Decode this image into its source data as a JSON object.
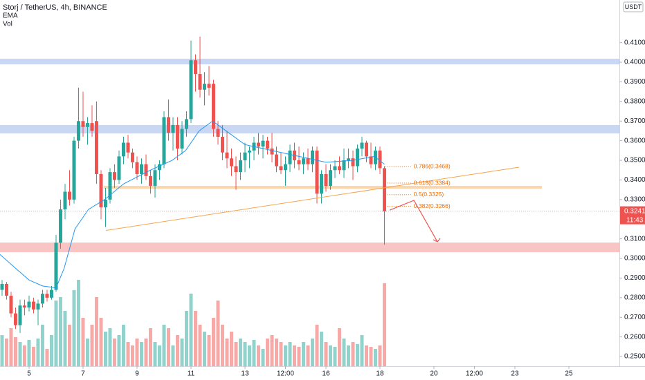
{
  "chart_data": {
    "type": "candlestick",
    "title": "Storj / TetherUS, 4h, BINANCE",
    "indicators": [
      "EMA",
      "Vol"
    ],
    "currency": "USDT",
    "xlim": [
      3.923,
      26.872
    ],
    "xticks": [
      {
        "value": 5,
        "label": "5"
      },
      {
        "value": 7,
        "label": "7"
      },
      {
        "value": 9,
        "label": "9"
      },
      {
        "value": 11,
        "label": "11"
      },
      {
        "value": 13,
        "label": "13"
      },
      {
        "value": 14.5,
        "label": "12:00"
      },
      {
        "value": 16,
        "label": "16"
      },
      {
        "value": 18,
        "label": "18"
      },
      {
        "value": 20,
        "label": "20"
      },
      {
        "value": 21.5,
        "label": "12:00"
      },
      {
        "value": 23,
        "label": "23"
      },
      {
        "value": 25,
        "label": "25"
      }
    ],
    "ylim": [
      0.2451,
      0.4317
    ],
    "yticks": [
      {
        "value": 0.25,
        "label": "0.2500"
      },
      {
        "value": 0.26,
        "label": "0.2600"
      },
      {
        "value": 0.27,
        "label": "0.2700"
      },
      {
        "value": 0.28,
        "label": "0.2800"
      },
      {
        "value": 0.29,
        "label": "0.2900"
      },
      {
        "value": 0.3,
        "label": "0.3000"
      },
      {
        "value": 0.31,
        "label": "0.3100"
      },
      {
        "value": 0.33,
        "label": "0.3300"
      },
      {
        "value": 0.34,
        "label": "0.3400"
      },
      {
        "value": 0.35,
        "label": "0.3500"
      },
      {
        "value": 0.36,
        "label": "0.3600"
      },
      {
        "value": 0.37,
        "label": "0.3700"
      },
      {
        "value": 0.38,
        "label": "0.3800"
      },
      {
        "value": 0.39,
        "label": "0.3900"
      },
      {
        "value": 0.4,
        "label": "0.4000"
      },
      {
        "value": 0.41,
        "label": "0.4100"
      }
    ],
    "vlim": [
      0,
      240
    ],
    "up_color": "#26a69a",
    "down_color": "#ef5350",
    "grid": false,
    "x": [
      4,
      4.167,
      4.333,
      4.5,
      4.667,
      4.833,
      5,
      5.167,
      5.333,
      5.5,
      5.667,
      5.833,
      6,
      6.167,
      6.333,
      6.5,
      6.667,
      6.833,
      7,
      7.167,
      7.333,
      7.5,
      7.667,
      7.833,
      8,
      8.167,
      8.333,
      8.5,
      8.667,
      8.833,
      9,
      9.167,
      9.333,
      9.5,
      9.667,
      9.833,
      10,
      10.167,
      10.333,
      10.5,
      10.667,
      10.833,
      11,
      11.167,
      11.333,
      11.5,
      11.667,
      11.833,
      12,
      12.167,
      12.333,
      12.5,
      12.667,
      12.833,
      13,
      13.167,
      13.333,
      13.5,
      13.667,
      13.833,
      14,
      14.167,
      14.333,
      14.5,
      14.667,
      14.833,
      15,
      15.167,
      15.333,
      15.5,
      15.667,
      15.833,
      16,
      16.167,
      16.333,
      16.5,
      16.667,
      16.833,
      17,
      17.167,
      17.333,
      17.5,
      17.667,
      17.833,
      18,
      18.167
    ],
    "candles": [
      [
        0.284,
        0.289,
        0.281,
        0.287,
        45
      ],
      [
        0.287,
        0.288,
        0.279,
        0.281,
        40
      ],
      [
        0.281,
        0.283,
        0.27,
        0.272,
        55
      ],
      [
        0.272,
        0.275,
        0.264,
        0.266,
        42
      ],
      [
        0.266,
        0.279,
        0.262,
        0.276,
        35
      ],
      [
        0.276,
        0.279,
        0.271,
        0.275,
        30
      ],
      [
        0.275,
        0.281,
        0.273,
        0.278,
        38
      ],
      [
        0.278,
        0.28,
        0.272,
        0.274,
        28
      ],
      [
        0.274,
        0.279,
        0.266,
        0.277,
        40
      ],
      [
        0.277,
        0.284,
        0.275,
        0.282,
        60
      ],
      [
        0.282,
        0.284,
        0.278,
        0.28,
        25
      ],
      [
        0.28,
        0.286,
        0.279,
        0.284,
        45
      ],
      [
        0.284,
        0.312,
        0.283,
        0.308,
        95
      ],
      [
        0.308,
        0.33,
        0.305,
        0.325,
        100
      ],
      [
        0.325,
        0.338,
        0.32,
        0.334,
        80
      ],
      [
        0.334,
        0.345,
        0.327,
        0.33,
        60
      ],
      [
        0.33,
        0.362,
        0.328,
        0.36,
        110
      ],
      [
        0.36,
        0.387,
        0.356,
        0.37,
        125
      ],
      [
        0.37,
        0.385,
        0.362,
        0.367,
        70
      ],
      [
        0.367,
        0.372,
        0.358,
        0.369,
        40
      ],
      [
        0.369,
        0.378,
        0.362,
        0.365,
        60
      ],
      [
        0.37,
        0.38,
        0.338,
        0.343,
        100
      ],
      [
        0.343,
        0.345,
        0.32,
        0.326,
        70
      ],
      [
        0.326,
        0.336,
        0.316,
        0.33,
        50
      ],
      [
        0.33,
        0.346,
        0.328,
        0.344,
        55
      ],
      [
        0.344,
        0.348,
        0.336,
        0.34,
        40
      ],
      [
        0.34,
        0.355,
        0.338,
        0.352,
        45
      ],
      [
        0.352,
        0.362,
        0.348,
        0.359,
        60
      ],
      [
        0.359,
        0.363,
        0.351,
        0.354,
        35
      ],
      [
        0.354,
        0.356,
        0.346,
        0.349,
        30
      ],
      [
        0.349,
        0.352,
        0.34,
        0.343,
        40
      ],
      [
        0.343,
        0.351,
        0.338,
        0.348,
        35
      ],
      [
        0.348,
        0.353,
        0.34,
        0.342,
        40
      ],
      [
        0.342,
        0.345,
        0.333,
        0.337,
        55
      ],
      [
        0.337,
        0.348,
        0.331,
        0.345,
        35
      ],
      [
        0.345,
        0.35,
        0.34,
        0.348,
        30
      ],
      [
        0.348,
        0.375,
        0.346,
        0.372,
        60
      ],
      [
        0.372,
        0.381,
        0.36,
        0.364,
        55
      ],
      [
        0.364,
        0.372,
        0.355,
        0.368,
        30
      ],
      [
        0.368,
        0.372,
        0.35,
        0.356,
        45
      ],
      [
        0.356,
        0.37,
        0.353,
        0.366,
        40
      ],
      [
        0.366,
        0.375,
        0.362,
        0.371,
        80
      ],
      [
        0.371,
        0.411,
        0.369,
        0.401,
        105
      ],
      [
        0.401,
        0.404,
        0.385,
        0.394,
        80
      ],
      [
        0.394,
        0.413,
        0.382,
        0.386,
        60
      ],
      [
        0.386,
        0.395,
        0.378,
        0.389,
        50
      ],
      [
        0.389,
        0.398,
        0.383,
        0.387,
        45
      ],
      [
        0.389,
        0.391,
        0.362,
        0.366,
        70
      ],
      [
        0.366,
        0.37,
        0.358,
        0.362,
        95
      ],
      [
        0.362,
        0.368,
        0.35,
        0.354,
        60
      ],
      [
        0.354,
        0.365,
        0.346,
        0.351,
        40
      ],
      [
        0.351,
        0.356,
        0.342,
        0.347,
        50
      ],
      [
        0.347,
        0.352,
        0.335,
        0.344,
        35
      ],
      [
        0.344,
        0.354,
        0.34,
        0.35,
        40
      ],
      [
        0.35,
        0.359,
        0.344,
        0.354,
        35
      ],
      [
        0.354,
        0.357,
        0.346,
        0.355,
        30
      ],
      [
        0.355,
        0.362,
        0.35,
        0.359,
        38
      ],
      [
        0.359,
        0.364,
        0.353,
        0.357,
        30
      ],
      [
        0.357,
        0.363,
        0.351,
        0.36,
        25
      ],
      [
        0.36,
        0.362,
        0.353,
        0.356,
        40
      ],
      [
        0.356,
        0.364,
        0.349,
        0.353,
        45
      ],
      [
        0.353,
        0.357,
        0.344,
        0.347,
        40
      ],
      [
        0.347,
        0.354,
        0.343,
        0.345,
        35
      ],
      [
        0.345,
        0.352,
        0.337,
        0.348,
        30
      ],
      [
        0.348,
        0.358,
        0.344,
        0.355,
        35
      ],
      [
        0.355,
        0.359,
        0.346,
        0.35,
        30
      ],
      [
        0.35,
        0.357,
        0.345,
        0.348,
        28
      ],
      [
        0.348,
        0.354,
        0.343,
        0.351,
        35
      ],
      [
        0.351,
        0.356,
        0.345,
        0.348,
        30
      ],
      [
        0.348,
        0.357,
        0.344,
        0.355,
        40
      ],
      [
        0.355,
        0.357,
        0.328,
        0.333,
        60
      ],
      [
        0.333,
        0.345,
        0.328,
        0.343,
        50
      ],
      [
        0.343,
        0.348,
        0.334,
        0.337,
        35
      ],
      [
        0.337,
        0.348,
        0.335,
        0.345,
        30
      ],
      [
        0.345,
        0.35,
        0.341,
        0.347,
        28
      ],
      [
        0.347,
        0.352,
        0.343,
        0.345,
        55
      ],
      [
        0.345,
        0.356,
        0.341,
        0.35,
        40
      ],
      [
        0.35,
        0.356,
        0.346,
        0.351,
        30
      ],
      [
        0.351,
        0.355,
        0.34,
        0.347,
        35
      ],
      [
        0.347,
        0.358,
        0.344,
        0.356,
        32
      ],
      [
        0.356,
        0.362,
        0.352,
        0.359,
        45
      ],
      [
        0.359,
        0.36,
        0.349,
        0.352,
        30
      ],
      [
        0.352,
        0.359,
        0.346,
        0.348,
        28
      ],
      [
        0.348,
        0.357,
        0.345,
        0.355,
        25
      ],
      [
        0.355,
        0.357,
        0.343,
        0.346,
        30
      ],
      [
        0.346,
        0.347,
        0.307,
        0.324,
        120
      ]
    ],
    "ema": {
      "color": "#2196f3",
      "x": [
        3.923,
        4.5,
        5,
        5.5,
        6,
        6.3,
        6.7,
        7.2,
        7.8,
        8.5,
        9.5,
        10.3,
        10.8,
        11.3,
        11.8,
        12.3,
        13,
        14,
        15,
        16,
        17,
        17.8,
        18.167
      ],
      "values": [
        0.302,
        0.295,
        0.289,
        0.286,
        0.285,
        0.295,
        0.315,
        0.325,
        0.33,
        0.338,
        0.345,
        0.35,
        0.355,
        0.365,
        0.37,
        0.365,
        0.358,
        0.355,
        0.352,
        0.349,
        0.35,
        0.352,
        0.348
      ]
    },
    "zones": [
      {
        "range": [
          0.3989,
          0.4018
        ],
        "x": [
          3.923,
          26.872
        ],
        "color": "#c9d7f5"
      },
      {
        "range": [
          0.3637,
          0.368
        ],
        "x": [
          3.923,
          26.872
        ],
        "color": "#c9d7f5"
      },
      {
        "range": [
          0.3355,
          0.337
        ],
        "x": [
          7.77,
          24.0
        ],
        "color": "#fad7ad"
      },
      {
        "range": [
          0.3032,
          0.3081
        ],
        "x": [
          3.923,
          26.872
        ],
        "color": "#f9c4c4"
      }
    ],
    "trendline": {
      "x": [
        7.846,
        23.154
      ],
      "y": [
        0.3143,
        0.3465
      ],
      "color": "#f7a44b"
    },
    "fib": {
      "color": "#ef6c00",
      "x": [
        18.2,
        19.2
      ],
      "levels": [
        {
          "label": "0.786(0.3468)",
          "price": 0.3468
        },
        {
          "label": "0.618(0.3384)",
          "price": 0.3384
        },
        {
          "label": "0.5(0.3325)",
          "price": 0.3325
        },
        {
          "label": "0.382(0.3266)",
          "price": 0.3266
        }
      ]
    },
    "arrow": {
      "x": [
        18.36,
        19.26,
        20.13
      ],
      "y": [
        0.3246,
        0.3296,
        0.3085
      ],
      "color": "#ef5350"
    },
    "last_price": {
      "value": 0.3241,
      "label": "0.3241"
    },
    "countdown": "11:43"
  }
}
